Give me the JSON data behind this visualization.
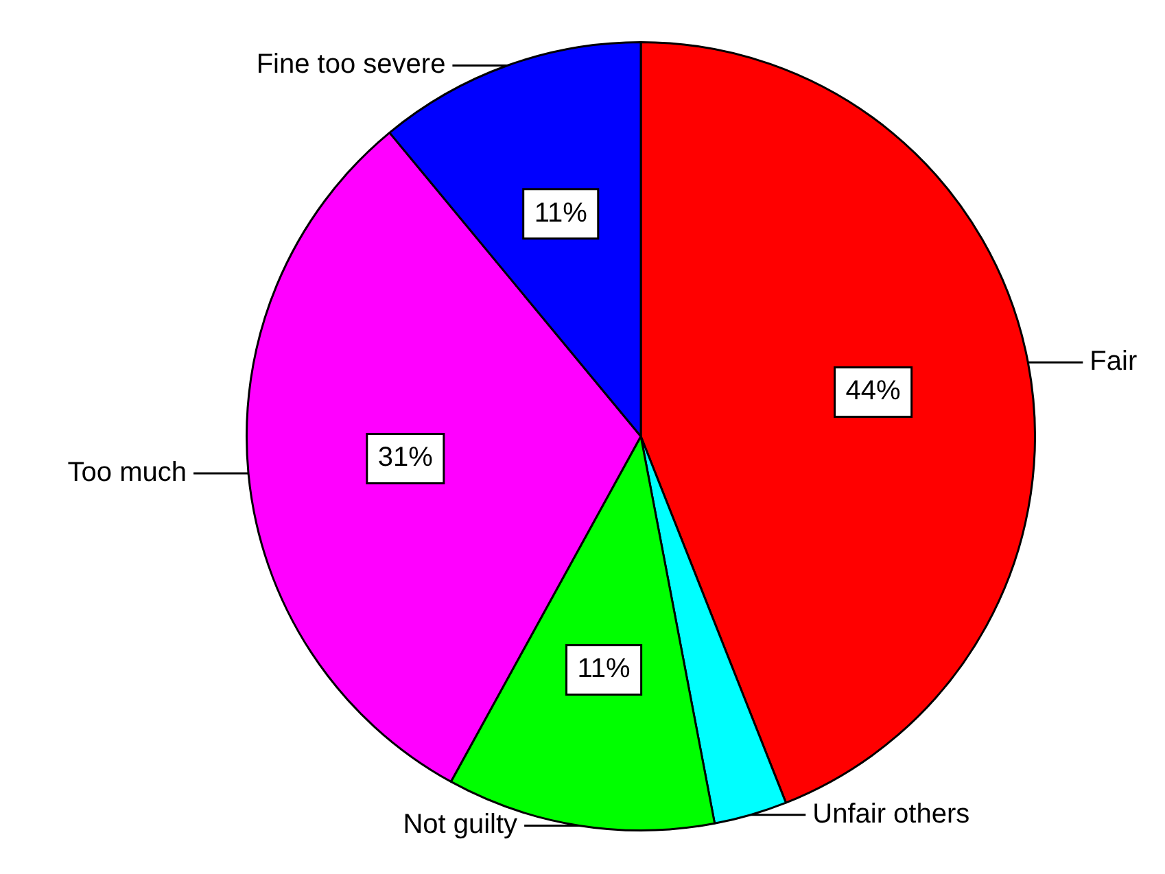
{
  "chart_data": {
    "type": "pie",
    "categories": [
      "Fair",
      "Unfair others",
      "Not guilty",
      "Too much",
      "Fine too severe"
    ],
    "values": [
      44,
      3,
      11,
      31,
      11
    ],
    "colors": [
      "#ff0000",
      "#00ffff",
      "#00ff00",
      "#ff00ff",
      "#0000ff"
    ],
    "value_labels": [
      "44%",
      null,
      "11%",
      "31%",
      "11%"
    ],
    "legend": false
  }
}
